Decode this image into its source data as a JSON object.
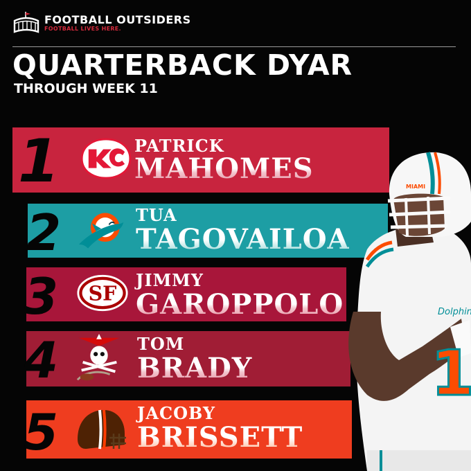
{
  "brand": {
    "name": "FOOTBALL OUTSIDERS",
    "tagline": "FOOTBALL LIVES HERE.",
    "icon": "stadium-icon",
    "accent": "#d32a3c"
  },
  "header": {
    "title": "QUARTERBACK DYAR",
    "subtitle": "THROUGH WEEK 11"
  },
  "rankings": [
    {
      "rank": "1",
      "first": "PATRICK",
      "last": "MAHOMES",
      "team_logo": "chiefs-logo-icon",
      "color": "#c8243e"
    },
    {
      "rank": "2",
      "first": "TUA",
      "last": "TAGOVAILOA",
      "team_logo": "dolphins-logo-icon",
      "color": "#1d9ea4"
    },
    {
      "rank": "3",
      "first": "JIMMY",
      "last": "GAROPPOLO",
      "team_logo": "49ers-logo-icon",
      "color": "#a8163a"
    },
    {
      "rank": "4",
      "first": "TOM",
      "last": "BRADY",
      "team_logo": "buccaneers-logo-icon",
      "color": "#a01d35"
    },
    {
      "rank": "5",
      "first": "JACOBY",
      "last": "BRISSETT",
      "team_logo": "browns-logo-icon",
      "color": "#ef3d1f"
    }
  ],
  "player_photo": {
    "icon": "quarterback-photo",
    "helmet_text": "MIAMI",
    "jersey_text": "Dolphins",
    "jersey_number": "1"
  }
}
